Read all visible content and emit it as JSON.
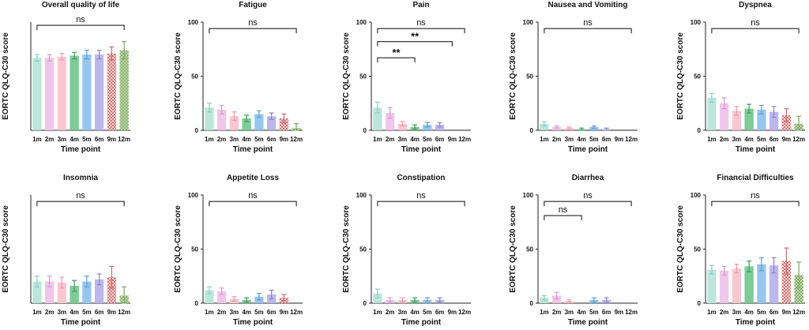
{
  "figure": {
    "ylabel": "EORTC QLQ-C30 score",
    "xlabel": "Time point",
    "ylim": [
      0,
      100
    ],
    "yticks": [
      "0",
      "50",
      "100"
    ]
  },
  "colors": {
    "palette": [
      "#b7e6d9",
      "#efc3ea",
      "#fac4cd",
      "#74c98f",
      "#8fc3ee",
      "#b8b3ec",
      "#e9a0a0",
      "#a9cd8c"
    ],
    "error": [
      "#8ad0bd",
      "#d99ad2",
      "#f09aa8",
      "#3f9e5f",
      "#5a9fd6",
      "#8a84cc",
      "#c96b6b",
      "#7aa85e"
    ],
    "hatched": [
      "#d86a6a",
      "#7dab5e"
    ]
  },
  "chart_data": [
    {
      "type": "bar",
      "title": "Overall quality of life",
      "xlabel": "Time point",
      "ylabel": "EORTC QLQ-C30 score",
      "ylim": [
        0,
        100
      ],
      "categories": [
        "1m",
        "2m",
        "3m",
        "4m",
        "5m",
        "6m",
        "9m",
        "12m"
      ],
      "values": [
        67,
        67,
        68,
        69,
        70,
        70,
        71,
        74
      ],
      "errors": [
        3,
        3,
        3,
        3,
        4,
        4,
        6,
        8
      ],
      "show_y_ticks": false,
      "annotations": [
        {
          "from": "1m",
          "to": "12m",
          "y": 97,
          "label": "ns"
        }
      ]
    },
    {
      "type": "bar",
      "title": "Fatigue",
      "xlabel": "Time point",
      "ylabel": "EORTC QLQ-C30 score",
      "ylim": [
        0,
        100
      ],
      "categories": [
        "1m",
        "2m",
        "3m",
        "4m",
        "5m",
        "6m",
        "9m",
        "12m"
      ],
      "values": [
        21,
        19,
        13,
        11,
        15,
        13,
        11,
        2
      ],
      "errors": [
        4,
        4,
        4,
        3,
        3,
        3,
        4,
        4
      ],
      "show_y_ticks": true,
      "annotations": [
        {
          "from": "1m",
          "to": "12m",
          "y": 94,
          "label": "ns"
        }
      ]
    },
    {
      "type": "bar",
      "title": "Pain",
      "xlabel": "Time point",
      "ylabel": "EORTC QLQ-C30 score",
      "ylim": [
        0,
        100
      ],
      "categories": [
        "1m",
        "2m",
        "3m",
        "4m",
        "5m",
        "6m",
        "9m",
        "12m"
      ],
      "values": [
        21,
        16,
        6,
        3,
        5,
        5,
        0,
        0
      ],
      "errors": [
        5,
        5,
        2,
        2,
        2,
        2,
        0,
        0
      ],
      "show_y_ticks": true,
      "annotations": [
        {
          "from": "1m",
          "to": "12m",
          "y": 94,
          "label": "ns"
        },
        {
          "from": "1m",
          "to": "9m",
          "y": 82,
          "label": "**"
        },
        {
          "from": "1m",
          "to": "4m",
          "y": 67,
          "label": "**"
        }
      ]
    },
    {
      "type": "bar",
      "title": "Nausea and Vomiting",
      "xlabel": "Time point",
      "ylabel": "EORTC QLQ-C30 score",
      "ylim": [
        0,
        100
      ],
      "categories": [
        "1m",
        "2m",
        "3m",
        "4m",
        "5m",
        "6m",
        "9m",
        "12m"
      ],
      "values": [
        6,
        3,
        2,
        1,
        3,
        1,
        0,
        0
      ],
      "errors": [
        2,
        1,
        1,
        1,
        1,
        1,
        0,
        0
      ],
      "show_y_ticks": true,
      "annotations": [
        {
          "from": "1m",
          "to": "12m",
          "y": 94,
          "label": "ns"
        }
      ]
    },
    {
      "type": "bar",
      "title": "Dyspnea",
      "xlabel": "Time point",
      "ylabel": "EORTC QLQ-C30 score",
      "ylim": [
        0,
        100
      ],
      "categories": [
        "1m",
        "2m",
        "3m",
        "4m",
        "5m",
        "6m",
        "9m",
        "12m"
      ],
      "values": [
        30,
        25,
        18,
        20,
        19,
        17,
        14,
        6
      ],
      "errors": [
        4,
        5,
        4,
        4,
        4,
        5,
        6,
        7
      ],
      "show_y_ticks": true,
      "annotations": [
        {
          "from": "1m",
          "to": "12m",
          "y": 94,
          "label": "ns"
        }
      ]
    },
    {
      "type": "bar",
      "title": "Insomnia",
      "xlabel": "Time point",
      "ylabel": "EORTC QLQ-C30 score",
      "ylim": [
        0,
        100
      ],
      "categories": [
        "1m",
        "2m",
        "3m",
        "4m",
        "5m",
        "6m",
        "9m",
        "12m"
      ],
      "values": [
        20,
        20,
        19,
        16,
        20,
        22,
        24,
        7
      ],
      "errors": [
        5,
        5,
        5,
        5,
        5,
        5,
        10,
        8
      ],
      "show_y_ticks": false,
      "annotations": [
        {
          "from": "1m",
          "to": "12m",
          "y": 94,
          "label": "ns"
        }
      ]
    },
    {
      "type": "bar",
      "title": "Appetite Loss",
      "xlabel": "Time point",
      "ylabel": "EORTC QLQ-C30 score",
      "ylim": [
        0,
        100
      ],
      "categories": [
        "1m",
        "2m",
        "3m",
        "4m",
        "5m",
        "6m",
        "9m",
        "12m"
      ],
      "values": [
        12,
        11,
        4,
        3,
        6,
        8,
        5,
        0
      ],
      "errors": [
        3,
        3,
        2,
        2,
        3,
        4,
        3,
        0
      ],
      "show_y_ticks": true,
      "annotations": [
        {
          "from": "1m",
          "to": "12m",
          "y": 94,
          "label": "ns"
        }
      ]
    },
    {
      "type": "bar",
      "title": "Constipation",
      "xlabel": "Time point",
      "ylabel": "EORTC QLQ-C30 score",
      "ylim": [
        0,
        100
      ],
      "categories": [
        "1m",
        "2m",
        "3m",
        "4m",
        "5m",
        "6m",
        "9m",
        "12m"
      ],
      "values": [
        9,
        3,
        3,
        3,
        3,
        3,
        0,
        0
      ],
      "errors": [
        4,
        2,
        2,
        2,
        2,
        2,
        0,
        0
      ],
      "show_y_ticks": true,
      "annotations": [
        {
          "from": "1m",
          "to": "12m",
          "y": 94,
          "label": "ns"
        }
      ]
    },
    {
      "type": "bar",
      "title": "Diarrhea",
      "xlabel": "Time point",
      "ylabel": "EORTC QLQ-C30 score",
      "ylim": [
        0,
        100
      ],
      "categories": [
        "1m",
        "2m",
        "3m",
        "4m",
        "5m",
        "6m",
        "9m",
        "12m"
      ],
      "values": [
        5,
        7,
        2,
        0,
        3,
        3,
        0,
        0
      ],
      "errors": [
        2,
        3,
        1,
        0,
        2,
        2,
        0,
        0
      ],
      "show_y_ticks": true,
      "annotations": [
        {
          "from": "1m",
          "to": "12m",
          "y": 94,
          "label": "ns"
        },
        {
          "from": "1m",
          "to": "4m",
          "y": 81,
          "label": "ns"
        }
      ]
    },
    {
      "type": "bar",
      "title": "Financial Difficulties",
      "xlabel": "Time point",
      "ylabel": "EORTC QLQ-C30 score",
      "ylim": [
        0,
        100
      ],
      "categories": [
        "1m",
        "2m",
        "3m",
        "4m",
        "5m",
        "6m",
        "9m",
        "12m"
      ],
      "values": [
        31,
        30,
        32,
        34,
        36,
        35,
        39,
        26
      ],
      "errors": [
        4,
        4,
        4,
        5,
        6,
        7,
        12,
        12
      ],
      "show_y_ticks": true,
      "annotations": [
        {
          "from": "1m",
          "to": "12m",
          "y": 94,
          "label": "ns"
        }
      ]
    }
  ]
}
